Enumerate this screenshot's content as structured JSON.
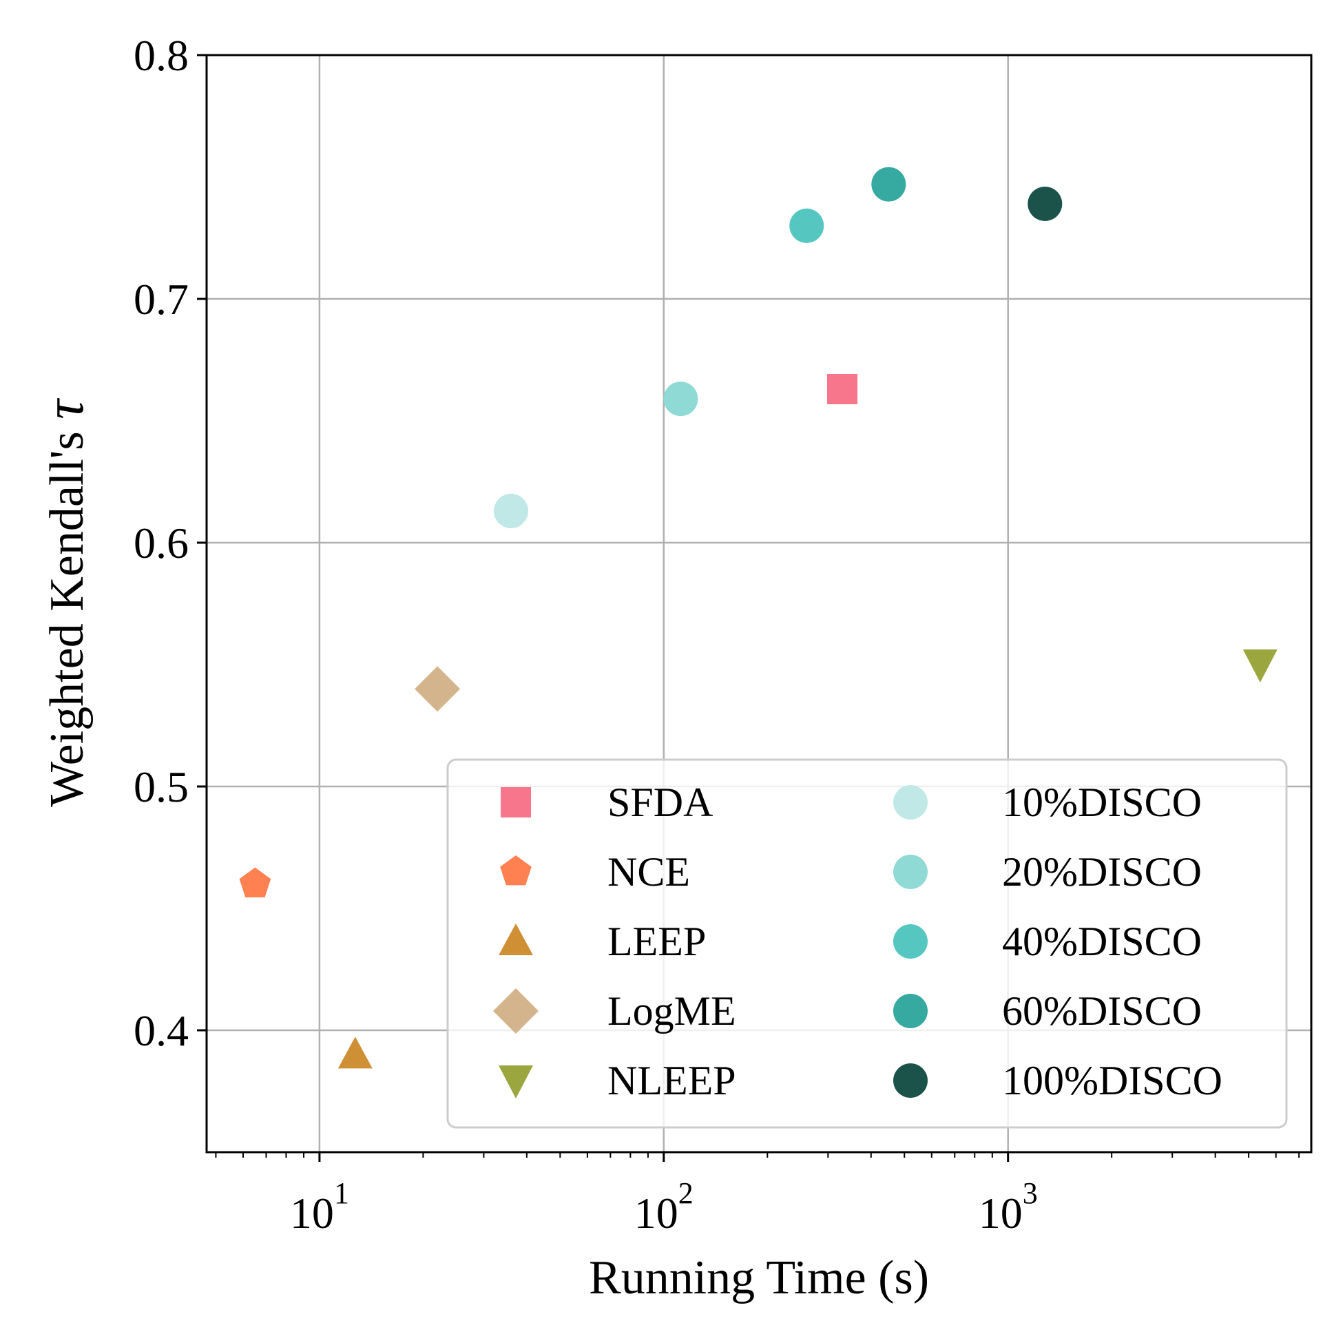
{
  "chart_data": {
    "type": "scatter",
    "xscale": "log",
    "xlabel": "Running Time (s)",
    "ylabel_text": "Weighted Kendall's ",
    "ylabel_symbol": "τ",
    "xlim": [
      4.7,
      7600
    ],
    "ylim": [
      0.35,
      0.8
    ],
    "grid": true,
    "legend_position": "lower-right",
    "x_major_ticks": [
      {
        "value": 10,
        "base": "10",
        "exp": "1"
      },
      {
        "value": 100,
        "base": "10",
        "exp": "2"
      },
      {
        "value": 1000,
        "base": "10",
        "exp": "3"
      }
    ],
    "y_ticks": [
      {
        "value": 0.4,
        "label": "0.4"
      },
      {
        "value": 0.5,
        "label": "0.5"
      },
      {
        "value": 0.6,
        "label": "0.6"
      },
      {
        "value": 0.7,
        "label": "0.7"
      },
      {
        "value": 0.8,
        "label": "0.8"
      }
    ],
    "series": [
      {
        "name": "SFDA",
        "marker": "square",
        "color": "#F7768B",
        "x": 330,
        "y": 0.663
      },
      {
        "name": "NCE",
        "marker": "pentagon",
        "color": "#FF8051",
        "x": 6.5,
        "y": 0.46
      },
      {
        "name": "LEEP",
        "marker": "triangle-up",
        "color": "#CF8F34",
        "x": 12.7,
        "y": 0.39
      },
      {
        "name": "LogME",
        "marker": "diamond",
        "color": "#D4B48C",
        "x": 22,
        "y": 0.54
      },
      {
        "name": "NLEEP",
        "marker": "triangle-down",
        "color": "#9BA63E",
        "x": 5400,
        "y": 0.55
      },
      {
        "name": "10%DISCO",
        "marker": "circle",
        "color": "#BFE8E6",
        "x": 36,
        "y": 0.613
      },
      {
        "name": "20%DISCO",
        "marker": "circle",
        "color": "#8FDAD4",
        "x": 112,
        "y": 0.659
      },
      {
        "name": "40%DISCO",
        "marker": "circle",
        "color": "#55C7C0",
        "x": 260,
        "y": 0.73
      },
      {
        "name": "60%DISCO",
        "marker": "circle",
        "color": "#36A9A1",
        "x": 450,
        "y": 0.747
      },
      {
        "name": "100%DISCO",
        "marker": "circle",
        "color": "#1B534A",
        "x": 1280,
        "y": 0.739
      }
    ]
  }
}
